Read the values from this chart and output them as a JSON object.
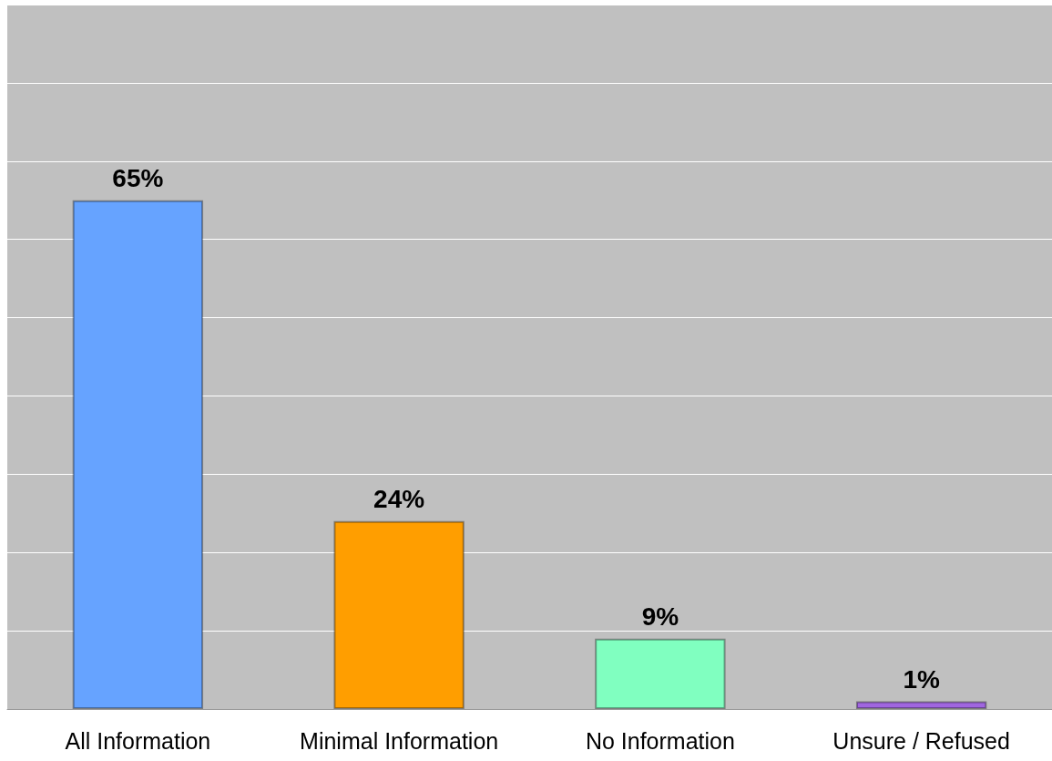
{
  "chart_data": {
    "type": "bar",
    "categories": [
      "All Information",
      "Minimal Information",
      "No Information",
      "Unsure / Refused"
    ],
    "values": [
      65,
      24,
      9,
      1
    ],
    "colors": [
      "#66a3ff",
      "#ff9e00",
      "#80ffc0",
      "#a066e0"
    ],
    "value_labels": [
      "65%",
      "24%",
      "9%",
      "1%"
    ],
    "ylim": [
      0,
      90
    ],
    "yticks": [
      0,
      10,
      20,
      30,
      40,
      50,
      60,
      70,
      80,
      90
    ],
    "grid": "y",
    "tick_labels": "x"
  }
}
